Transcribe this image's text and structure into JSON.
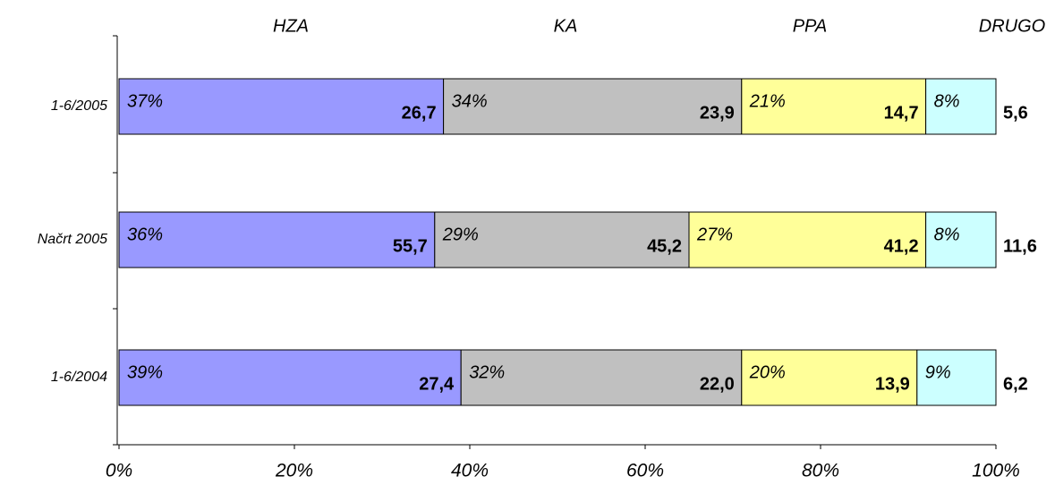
{
  "chart_data": {
    "type": "bar",
    "orientation": "horizontal",
    "stacked": "percent",
    "categories": [
      "1-6/2005",
      "Načrt 2005",
      "1-6/2004"
    ],
    "series": [
      {
        "name": "HZA",
        "color": "#9999ff",
        "values": [
          37,
          36,
          39
        ],
        "value_labels": [
          "37%",
          "36%",
          "39%"
        ],
        "amounts": [
          26.7,
          55.7,
          27.4
        ],
        "amount_labels": [
          "26,7",
          "55,7",
          "27,4"
        ]
      },
      {
        "name": "KA",
        "color": "#c0c0c0",
        "values": [
          34,
          29,
          32
        ],
        "value_labels": [
          "34%",
          "29%",
          "32%"
        ],
        "amounts": [
          23.9,
          45.2,
          22.0
        ],
        "amount_labels": [
          "23,9",
          "45,2",
          "22,0"
        ]
      },
      {
        "name": "PPA",
        "color": "#ffff99",
        "values": [
          21,
          27,
          20
        ],
        "value_labels": [
          "21%",
          "27%",
          "20%"
        ],
        "amounts": [
          14.7,
          41.2,
          13.9
        ],
        "amount_labels": [
          "14,7",
          "41,2",
          "13,9"
        ]
      },
      {
        "name": "DRUGO",
        "color": "#ccffff",
        "values": [
          8,
          8,
          9
        ],
        "value_labels": [
          "8%",
          "8%",
          "9%"
        ],
        "amounts": [
          5.6,
          11.6,
          6.2
        ],
        "amount_labels": [
          "5,6",
          "11,6",
          "6,2"
        ]
      }
    ],
    "xlim": [
      0,
      100
    ],
    "xticks": [
      {
        "value": 0,
        "label": "0%"
      },
      {
        "value": 20,
        "label": "20%"
      },
      {
        "value": 40,
        "label": "40%"
      },
      {
        "value": 60,
        "label": "60%"
      },
      {
        "value": 80,
        "label": "80%"
      },
      {
        "value": 100,
        "label": "100%"
      }
    ]
  }
}
